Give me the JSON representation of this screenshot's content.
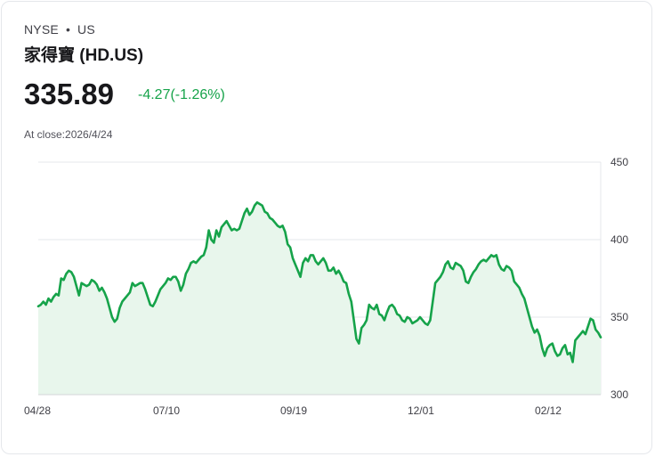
{
  "header": {
    "exchange": "NYSE",
    "separator": "•",
    "region": "US",
    "name": "家得寶 (HD.US)",
    "price": "335.89",
    "change": "-4.27(-1.26%)",
    "close_label": "At close:2026/4/24"
  },
  "colors": {
    "line": "#16a34a",
    "fill": "#e8f6ec",
    "grid": "#e5e7eb",
    "text": "#18181b",
    "positive_change": "#16a34a"
  },
  "chart_data": {
    "type": "area",
    "title": "家得寶 (HD.US)",
    "xlabel": "",
    "ylabel": "",
    "ylim": [
      300,
      450
    ],
    "y_ticks": [
      450,
      400,
      350,
      300
    ],
    "y_tick_labels": [
      "450",
      "400",
      "350",
      "300"
    ],
    "x_tick_labels": [
      "04/28",
      "07/10",
      "09/19",
      "12/01",
      "02/12"
    ],
    "x_tick_indices": [
      0,
      50,
      100,
      150,
      200
    ],
    "grid": true,
    "series": [
      {
        "name": "HD.US",
        "values": [
          357,
          358,
          360,
          358,
          362,
          360,
          363,
          365,
          364,
          375,
          374,
          378,
          380,
          379,
          376,
          370,
          364,
          372,
          371,
          370,
          371,
          374,
          373,
          371,
          367,
          369,
          366,
          362,
          356,
          350,
          347,
          349,
          356,
          360,
          362,
          364,
          366,
          372,
          370,
          371,
          372,
          372,
          368,
          363,
          358,
          357,
          360,
          364,
          368,
          370,
          372,
          375,
          374,
          376,
          376,
          373,
          367,
          371,
          378,
          381,
          385,
          386,
          385,
          387,
          389,
          390,
          395,
          406,
          400,
          398,
          406,
          402,
          408,
          410,
          412,
          409,
          406,
          407,
          406,
          407,
          412,
          417,
          420,
          416,
          418,
          422,
          424,
          423,
          422,
          418,
          417,
          414,
          413,
          411,
          409,
          408,
          409,
          405,
          397,
          395,
          388,
          384,
          380,
          376,
          385,
          388,
          386,
          390,
          390,
          386,
          384,
          386,
          388,
          385,
          380,
          380,
          382,
          378,
          380,
          377,
          373,
          372,
          365,
          360,
          348,
          336,
          333,
          343,
          345,
          348,
          358,
          356,
          355,
          358,
          352,
          351,
          348,
          353,
          357,
          358,
          356,
          352,
          351,
          348,
          347,
          350,
          349,
          346,
          347,
          348,
          350,
          348,
          346,
          345,
          348,
          360,
          372,
          374,
          376,
          379,
          384,
          386,
          382,
          381,
          385,
          384,
          383,
          380,
          373,
          372,
          376,
          379,
          381,
          384,
          386,
          387,
          386,
          388,
          390,
          389,
          390,
          384,
          381,
          380,
          383,
          382,
          380,
          373,
          371,
          369,
          365,
          362,
          356,
          350,
          344,
          340,
          342,
          338,
          330,
          325,
          330,
          332,
          333,
          328,
          325,
          326,
          330,
          332,
          326,
          327,
          321,
          335,
          337,
          339,
          341,
          339,
          344,
          349,
          348,
          342,
          340,
          337
        ]
      }
    ]
  }
}
